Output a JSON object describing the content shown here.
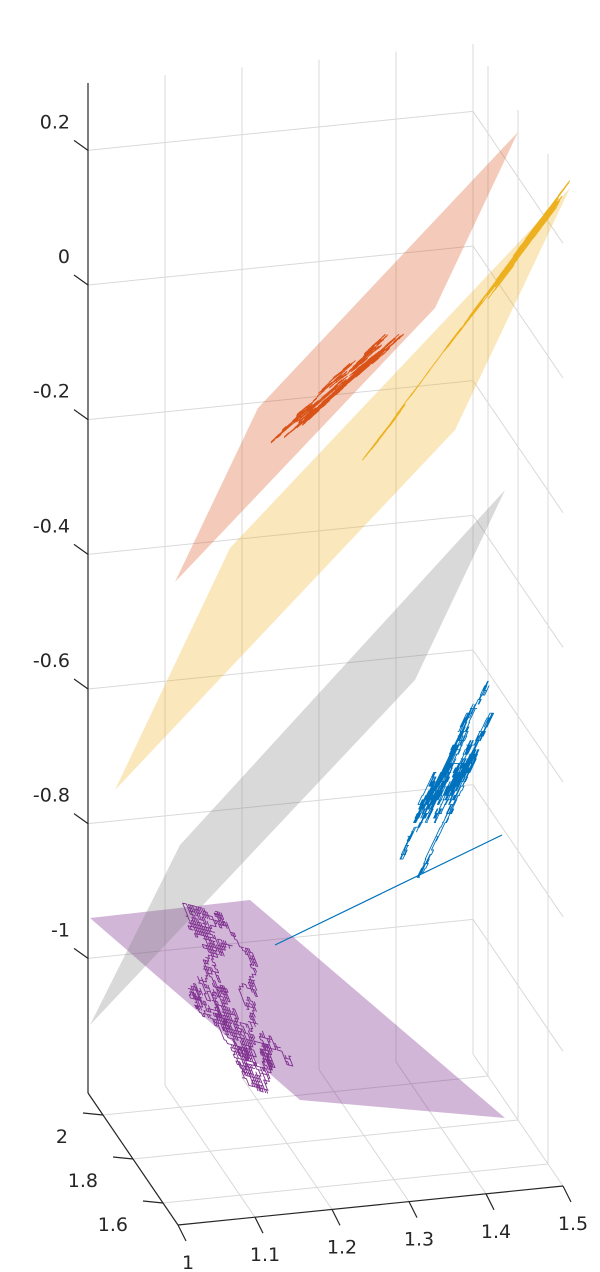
{
  "chart_data": {
    "type": "3d-line",
    "title": "",
    "xlabel": "",
    "ylabel": "",
    "zlabel": "",
    "x_ticks": [
      "1",
      "1.1",
      "1.2",
      "1.3",
      "1.4",
      "1.5"
    ],
    "y_ticks": [
      "1.6",
      "1.8",
      "2"
    ],
    "z_ticks": [
      "0.2",
      "0",
      "-0.2",
      "-0.4",
      "-0.6",
      "-0.8",
      "-1"
    ],
    "xlim": [
      1,
      1.5
    ],
    "ylim": [
      1.5,
      2.1
    ],
    "zlim": [
      -1.2,
      0.3
    ],
    "grid": true,
    "colors": {
      "random_walk_3d": "#0072BD",
      "orange": "#D95319",
      "yellow": "#EDB120",
      "purple": "#7E2F8E",
      "gray_plane": "#808080"
    },
    "series": [
      {
        "color": "#0072BD",
        "kind": "3d random walk with straight segment",
        "line_start": [
          1.2,
          1.9,
          -0.9
        ],
        "line_end": [
          1.45,
          1.7,
          -0.73
        ]
      },
      {
        "color": "#7E2F8E",
        "kind": "projection walk + plane",
        "z_level": -1.05
      },
      {
        "color": "#808080",
        "kind": "empty plane",
        "z_level": -0.55
      },
      {
        "color": "#EDB120",
        "kind": "projection walk + plane",
        "z_level": -0.3
      },
      {
        "color": "#D95319",
        "kind": "projection walk + plane",
        "z_level": 0.0
      }
    ]
  }
}
